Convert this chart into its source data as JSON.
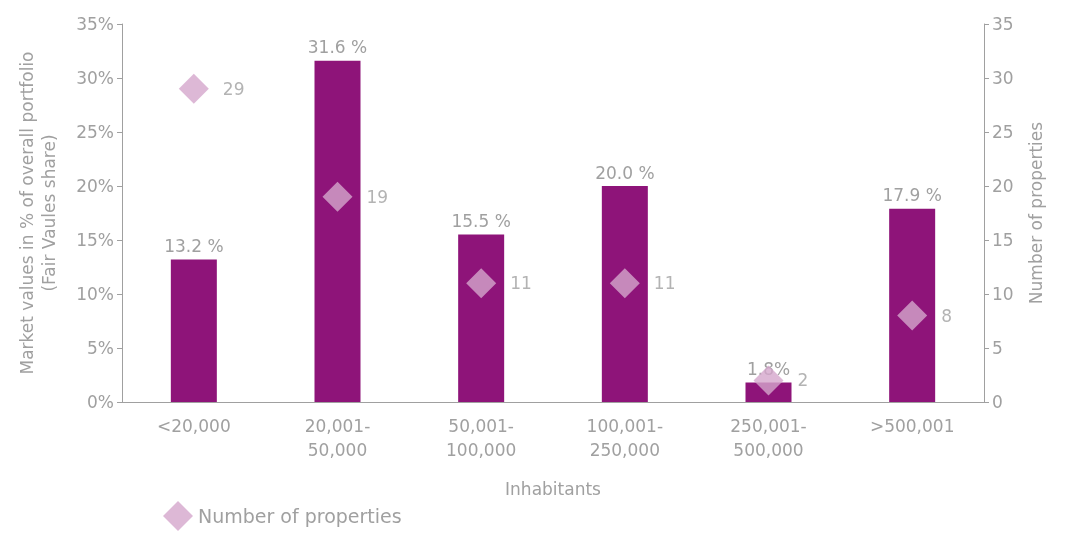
{
  "chart_data": {
    "type": "bar",
    "xlabel": "Inhabitants",
    "ylabel": "Market values in % of overall portfolio\n(Fair Vaules share)",
    "y2label": "Number of properties",
    "categories": [
      "<20,000",
      "20,001-\n50,000",
      "50,001-\n100,000",
      "100,001-\n250,000",
      "250,001-\n500,000",
      ">500,001"
    ],
    "series": [
      {
        "color": "#8e1479",
        "values": [
          13.2,
          31.6,
          15.5,
          20.0,
          1.8,
          17.9
        ],
        "value_labels": [
          "13.2 %",
          "31.6 %",
          "15.5 %",
          "20.0 %",
          "1.8%",
          "17.9 %"
        ]
      },
      {
        "type": "scatter",
        "name": "Number of properties",
        "axis": "y2",
        "color": "#d4a6cc",
        "marker": "diamond",
        "data_labels": true,
        "values": [
          29,
          19,
          11,
          11,
          2,
          8
        ]
      }
    ],
    "ylim": [
      0,
      35
    ],
    "yticks": [
      {
        "value": 0,
        "label": "0%"
      },
      {
        "value": 5,
        "label": "5%"
      },
      {
        "value": 10,
        "label": "10%"
      },
      {
        "value": 15,
        "label": "15%"
      },
      {
        "value": 20,
        "label": "20%"
      },
      {
        "value": 25,
        "label": "25%"
      },
      {
        "value": 30,
        "label": "30%"
      },
      {
        "value": 35,
        "label": "35%"
      }
    ],
    "y2lim": [
      0,
      35
    ],
    "y2ticks": [
      0,
      5,
      10,
      15,
      20,
      25,
      30,
      35
    ],
    "grid": false,
    "legend": "bottom left"
  }
}
